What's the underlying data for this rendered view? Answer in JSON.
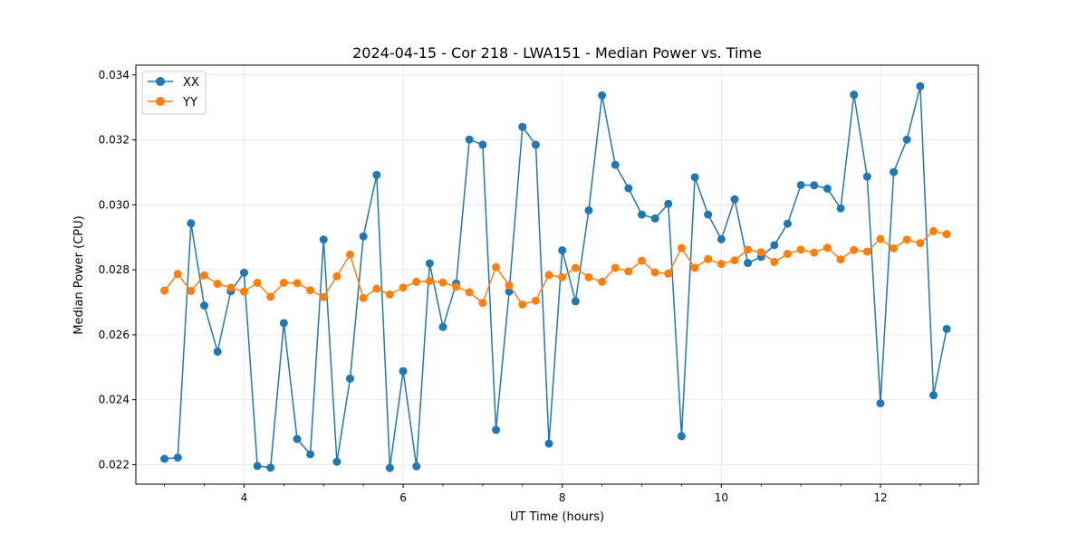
{
  "chart_data": {
    "type": "line",
    "title": "2024-04-15 - Cor 218 - LWA151 - Median Power vs. Time",
    "xlabel": "UT Time (hours)",
    "ylabel": "Median Power (CPU)",
    "xlim": [
      2.64,
      13.23
    ],
    "ylim": [
      0.0214,
      0.0343
    ],
    "xticks": [
      4,
      6,
      8,
      10,
      12
    ],
    "xtick_labels": [
      "4",
      "6",
      "8",
      "10",
      "12"
    ],
    "yticks": [
      0.022,
      0.024,
      0.026,
      0.028,
      0.03,
      0.032,
      0.034
    ],
    "ytick_labels": [
      "0.022",
      "0.024",
      "0.026",
      "0.028",
      "0.030",
      "0.032",
      "0.034"
    ],
    "grid": true,
    "legend_position": "top-left",
    "x": [
      3.0,
      3.167,
      3.333,
      3.5,
      3.667,
      3.833,
      4.0,
      4.167,
      4.333,
      4.5,
      4.667,
      4.833,
      5.0,
      5.167,
      5.333,
      5.5,
      5.667,
      5.833,
      6.0,
      6.167,
      6.333,
      6.5,
      6.667,
      6.833,
      7.0,
      7.167,
      7.333,
      7.5,
      7.667,
      7.833,
      8.0,
      8.167,
      8.333,
      8.5,
      8.667,
      8.833,
      9.0,
      9.167,
      9.333,
      9.5,
      9.667,
      9.833,
      10.0,
      10.167,
      10.333,
      10.5,
      10.667,
      10.833,
      11.0,
      11.167,
      11.333,
      11.5,
      11.667,
      11.833,
      12.0,
      12.167,
      12.333,
      12.5,
      12.667,
      12.833
    ],
    "series": [
      {
        "name": "XX",
        "color": "#1f77b4",
        "values": [
          0.02218,
          0.02222,
          0.02943,
          0.0269,
          0.02548,
          0.02734,
          0.02791,
          0.02196,
          0.02191,
          0.02636,
          0.02279,
          0.02232,
          0.02893,
          0.02209,
          0.02465,
          0.02903,
          0.03092,
          0.0219,
          0.02488,
          0.02195,
          0.0282,
          0.02624,
          0.02758,
          0.03201,
          0.03185,
          0.02307,
          0.02733,
          0.0324,
          0.03185,
          0.02265,
          0.0286,
          0.02703,
          0.02983,
          0.03337,
          0.03123,
          0.03051,
          0.0297,
          0.02958,
          0.03003,
          0.02288,
          0.03085,
          0.0297,
          0.02894,
          0.03017,
          0.02821,
          0.0284,
          0.02876,
          0.02942,
          0.03061,
          0.0306,
          0.0305,
          0.02989,
          0.03339,
          0.03087,
          0.02389,
          0.03101,
          0.03201,
          0.03365,
          0.02414,
          0.02618
        ]
      },
      {
        "name": "YY",
        "color": "#ff7f0e",
        "values": [
          0.02736,
          0.02787,
          0.02735,
          0.02783,
          0.02757,
          0.02745,
          0.02733,
          0.0276,
          0.02717,
          0.0276,
          0.02759,
          0.02737,
          0.02716,
          0.0278,
          0.02847,
          0.02713,
          0.02742,
          0.02724,
          0.02745,
          0.02763,
          0.02765,
          0.02761,
          0.02748,
          0.02731,
          0.02698,
          0.02808,
          0.02752,
          0.02693,
          0.02705,
          0.02784,
          0.02777,
          0.02806,
          0.02777,
          0.02763,
          0.02806,
          0.02795,
          0.02828,
          0.02792,
          0.02788,
          0.02867,
          0.02806,
          0.02833,
          0.02818,
          0.02829,
          0.02862,
          0.02854,
          0.02824,
          0.02849,
          0.02862,
          0.02853,
          0.02868,
          0.02832,
          0.02861,
          0.02856,
          0.02895,
          0.02866,
          0.02893,
          0.02882,
          0.02919,
          0.0291
        ]
      }
    ]
  }
}
